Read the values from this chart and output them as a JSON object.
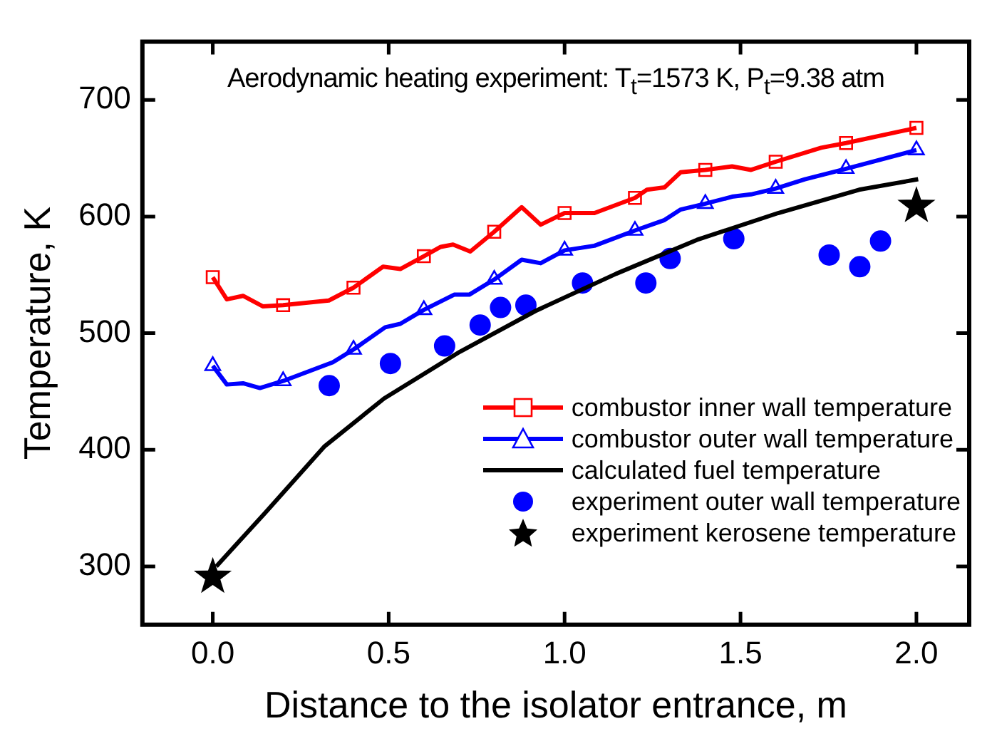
{
  "chart_data": {
    "type": "line",
    "title": "Aerodynamic heating experiment: T$_{t}$=1573 K, P$_{t}$=9.38 atm",
    "xlabel": "Distance to the isolator entrance, m",
    "ylabel": "Temperature, K",
    "xlim": [
      -0.2,
      2.15
    ],
    "ylim": [
      250,
      750
    ],
    "xticks": [
      {
        "value": 0,
        "label": "0.0"
      },
      {
        "value": 0.5,
        "label": "0.5"
      },
      {
        "value": 1,
        "label": "1.0"
      },
      {
        "value": 1.5,
        "label": "1.5"
      },
      {
        "value": 2,
        "label": "2.0"
      }
    ],
    "yticks": [
      300,
      400,
      500,
      600,
      700
    ],
    "grid": false,
    "legend": "bottom right",
    "series": [
      {
        "name": "combustor inner wall temperature",
        "type": "line",
        "color": "#ff0000",
        "marker": "none",
        "line_style": "solid",
        "x": [
          0,
          0.04,
          0.086,
          0.142,
          0.2,
          0.33,
          0.4,
          0.484,
          0.533,
          0.6,
          0.648,
          0.683,
          0.732,
          0.8,
          0.878,
          0.932,
          1,
          1.085,
          1.2,
          1.234,
          1.284,
          1.33,
          1.4,
          1.476,
          1.53,
          1.6,
          1.729,
          1.8,
          2
        ],
        "values": [
          548,
          529,
          532,
          523,
          524,
          528,
          539,
          557,
          555,
          566,
          574,
          576,
          570,
          587,
          608,
          593,
          603,
          603,
          616,
          623,
          625,
          638,
          640,
          643,
          640,
          647,
          659,
          663,
          676
        ]
      },
      {
        "type": "scatter",
        "color": "#ff0000",
        "marker": "square",
        "x": [
          0,
          0.2,
          0.4,
          0.6,
          0.8,
          1,
          1.2,
          1.4,
          1.6,
          1.8,
          2
        ],
        "values": [
          548,
          524,
          539,
          566,
          587,
          603,
          616,
          640,
          647,
          663,
          676
        ]
      },
      {
        "name": "combustor outer wall temperature",
        "type": "line",
        "color": "#0000ff",
        "marker": "none",
        "line_style": "solid",
        "x": [
          0,
          0.04,
          0.086,
          0.134,
          0.2,
          0.341,
          0.4,
          0.49,
          0.533,
          0.6,
          0.686,
          0.729,
          0.8,
          0.878,
          0.932,
          1,
          1.085,
          1.2,
          1.284,
          1.33,
          1.4,
          1.476,
          1.53,
          1.6,
          1.683,
          1.8,
          2
        ],
        "values": [
          472,
          456,
          457,
          453,
          459,
          475,
          486,
          505,
          508,
          520,
          533,
          533,
          546,
          563,
          560,
          571,
          575,
          588,
          597,
          606,
          611,
          617,
          619,
          624,
          632,
          641,
          657
        ]
      },
      {
        "type": "scatter",
        "color": "#0000ff",
        "marker": "triangle",
        "x": [
          0,
          0.2,
          0.4,
          0.6,
          0.8,
          1,
          1.2,
          1.4,
          1.6,
          1.8,
          2
        ],
        "values": [
          472,
          459,
          486,
          520,
          546,
          571,
          588,
          611,
          624,
          641,
          657
        ]
      },
      {
        "name": "calculated fuel temperature",
        "type": "line",
        "color": "#000000",
        "marker": "none",
        "line_style": "solid",
        "x": [
          0.01,
          0.149,
          0.318,
          0.487,
          0.702,
          0.917,
          1.147,
          1.376,
          1.607,
          1.837,
          2.005
        ],
        "values": [
          300,
          346,
          403,
          444,
          484,
          519,
          551,
          580,
          603,
          623,
          632
        ]
      },
      {
        "name": "experiment outer wall temperature",
        "type": "scatter",
        "color": "#0000ff",
        "marker": "circle",
        "x": [
          0.331,
          0.505,
          0.659,
          0.76,
          0.818,
          0.89,
          1.051,
          1.231,
          1.3,
          1.481,
          1.752,
          1.839,
          1.898
        ],
        "values": [
          455,
          474,
          489,
          507,
          522,
          524,
          543,
          543,
          564,
          581,
          567,
          557,
          579
        ]
      },
      {
        "name": "experiment kerosene temperature",
        "type": "scatter",
        "color": "#000000",
        "marker": "star",
        "x": [
          0,
          2
        ],
        "values": [
          291,
          609
        ]
      }
    ]
  }
}
